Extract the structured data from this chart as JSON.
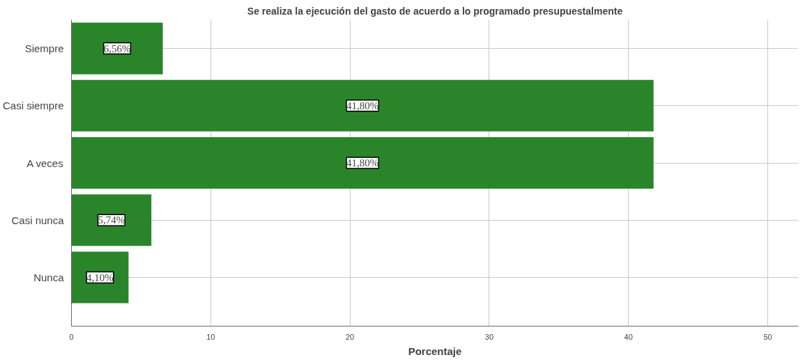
{
  "chart_data": {
    "type": "bar",
    "orientation": "horizontal",
    "title": "Se realiza la ejecución del gasto de acuerdo a lo programado presupuestalmente",
    "xlabel": "Porcentaje",
    "categories": [
      "Siempre",
      "Casi siempre",
      "A veces",
      "Casi nunca",
      "Nunca"
    ],
    "values": [
      6.56,
      41.8,
      41.8,
      5.74,
      4.1
    ],
    "value_labels": [
      "6,56%",
      "41,80%",
      "41,80%",
      "5,74%",
      "4,10%"
    ],
    "color": "#2a852a",
    "xlim": [
      0,
      52.2
    ],
    "xticks": [
      0,
      10,
      20,
      30,
      40,
      50
    ],
    "grid": true
  }
}
